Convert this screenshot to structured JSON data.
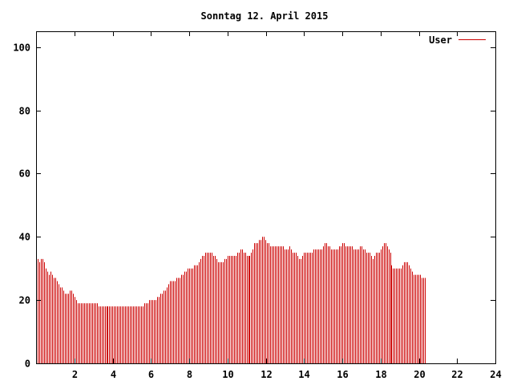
{
  "chart_data": {
    "type": "bar",
    "title": "Sonntag 12. April 2015",
    "xlabel": "",
    "ylabel": "",
    "xlim": [
      0,
      24
    ],
    "ylim": [
      0,
      105
    ],
    "xticks": [
      2,
      4,
      6,
      8,
      10,
      12,
      14,
      16,
      18,
      20,
      22,
      24
    ],
    "yticks": [
      0,
      20,
      40,
      60,
      80,
      100
    ],
    "grid": false,
    "legend": "top-right",
    "colors": {
      "series": "#cc0000",
      "frame": "#000000",
      "background": "#ffffff"
    },
    "series": [
      {
        "name": "User",
        "x_start": 0,
        "x_step": 0.0833,
        "values": [
          33,
          33,
          32,
          33,
          33,
          32,
          30,
          29,
          28,
          29,
          28,
          27,
          27,
          26,
          25,
          24,
          24,
          23,
          22,
          22,
          22,
          23,
          23,
          22,
          21,
          20,
          19,
          19,
          19,
          19,
          19,
          19,
          19,
          19,
          19,
          19,
          19,
          19,
          19,
          18,
          18,
          18,
          18,
          18,
          18,
          18,
          18,
          18,
          18,
          18,
          18,
          18,
          18,
          18,
          18,
          18,
          18,
          18,
          18,
          18,
          18,
          18,
          18,
          18,
          18,
          18,
          18,
          18,
          19,
          19,
          19,
          20,
          20,
          20,
          20,
          20,
          21,
          21,
          22,
          22,
          23,
          23,
          24,
          25,
          26,
          26,
          26,
          26,
          27,
          27,
          27,
          28,
          28,
          29,
          29,
          30,
          30,
          30,
          30,
          31,
          31,
          31,
          32,
          33,
          34,
          34,
          35,
          35,
          35,
          35,
          35,
          34,
          34,
          33,
          32,
          32,
          32,
          32,
          33,
          33,
          34,
          34,
          34,
          34,
          34,
          34,
          35,
          35,
          36,
          36,
          35,
          35,
          34,
          34,
          34,
          35,
          36,
          38,
          38,
          38,
          39,
          39,
          40,
          40,
          39,
          38,
          38,
          37,
          37,
          37,
          37,
          37,
          37,
          37,
          37,
          37,
          36,
          36,
          36,
          37,
          36,
          35,
          35,
          35,
          34,
          33,
          33,
          34,
          35,
          35,
          35,
          35,
          35,
          35,
          36,
          36,
          36,
          36,
          36,
          36,
          37,
          38,
          38,
          37,
          37,
          36,
          36,
          36,
          36,
          36,
          37,
          37,
          38,
          38,
          37,
          37,
          37,
          37,
          37,
          36,
          36,
          36,
          36,
          37,
          37,
          36,
          36,
          35,
          35,
          35,
          34,
          33,
          34,
          35,
          35,
          35,
          36,
          37,
          38,
          38,
          37,
          36,
          35,
          31,
          30,
          30,
          30,
          30,
          30,
          30,
          31,
          32,
          32,
          32,
          31,
          30,
          29,
          28,
          28,
          28,
          28,
          28,
          27,
          27,
          27
        ]
      }
    ]
  }
}
